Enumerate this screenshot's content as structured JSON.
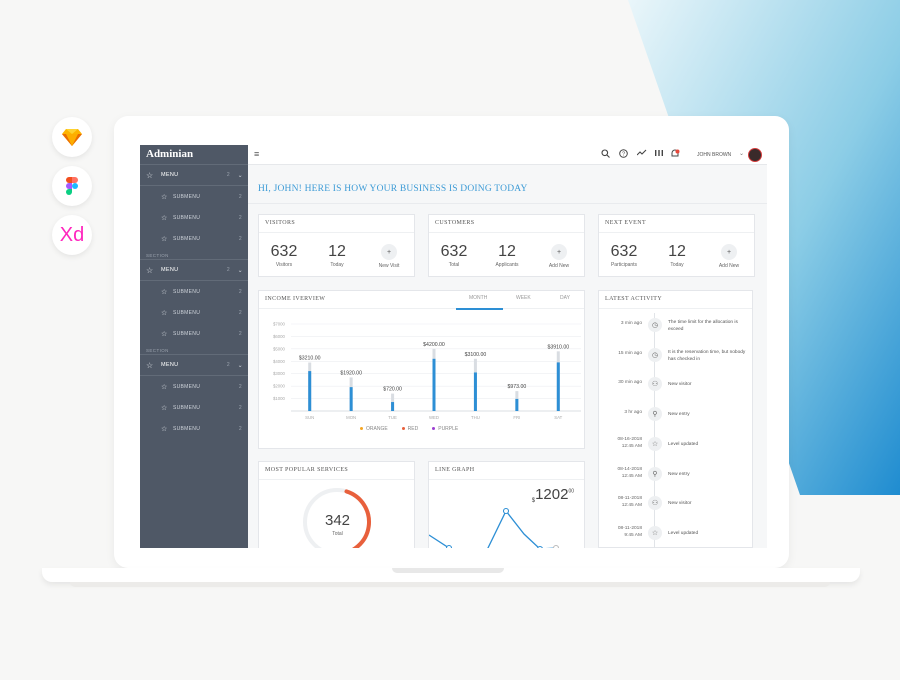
{
  "tools": [
    {
      "name": "sketch",
      "icon": "sketch-icon",
      "color": "#f7b500"
    },
    {
      "name": "figma",
      "icon": "figma-icon"
    },
    {
      "name": "xd",
      "label": "Xd",
      "color": "#ff26be"
    }
  ],
  "app": {
    "brand": "Adminian",
    "user": "JOHN BROWN",
    "greeting": "HI, JOHN! HERE IS HOW YOUR BUSINESS IS DOING TODAY"
  },
  "sidebar": {
    "groups": [
      {
        "section": "",
        "menu": "MENU",
        "count": "2",
        "subs": [
          {
            "label": "SUBMENU",
            "count": "2"
          },
          {
            "label": "SUBMENU",
            "count": "2"
          },
          {
            "label": "SUBMENU",
            "count": "2"
          }
        ]
      },
      {
        "section": "SECTION",
        "menu": "MENU",
        "count": "2",
        "subs": [
          {
            "label": "SUBMENU",
            "count": "2"
          },
          {
            "label": "SUBMENU",
            "count": "2"
          },
          {
            "label": "SUBMENU",
            "count": "2"
          }
        ]
      },
      {
        "section": "SECTION",
        "menu": "MENU",
        "count": "2",
        "subs": [
          {
            "label": "SUBMENU",
            "count": "2"
          },
          {
            "label": "SUBMENU",
            "count": "2"
          },
          {
            "label": "SUBMENU",
            "count": "2"
          }
        ]
      }
    ]
  },
  "stats": [
    {
      "title": "VISITORS",
      "a_num": "632",
      "a_lbl": "Visitors",
      "b_num": "12",
      "b_lbl": "Today",
      "action": "New Visit"
    },
    {
      "title": "CUSTOMERS",
      "a_num": "632",
      "a_lbl": "Total",
      "b_num": "12",
      "b_lbl": "Applicants",
      "action": "Add New"
    },
    {
      "title": "NEXT EVENT",
      "a_num": "632",
      "a_lbl": "Participants",
      "b_num": "12",
      "b_lbl": "Today",
      "action": "Add New"
    }
  ],
  "income": {
    "title": "INCOME IVERVIEW",
    "tabs": [
      "MONTH",
      "WEEK",
      "DAY"
    ],
    "active_tab": "MONTH"
  },
  "chart_data": {
    "type": "bar",
    "title": "INCOME IVERVIEW",
    "categories": [
      "SUN",
      "MON",
      "TUE",
      "WED",
      "THU",
      "FRI",
      "SAT"
    ],
    "yticks": [
      "$1000",
      "$2000",
      "$3000",
      "$4000",
      "$5000",
      "$6000",
      "$7000"
    ],
    "ylim": [
      0,
      7000
    ],
    "series": [
      {
        "name": "ORANGE",
        "color": "#f5a623",
        "values": [
          3210,
          1920,
          720,
          4200,
          3100,
          973,
          3910
        ],
        "labels": [
          "$3210.00",
          "$1920.00",
          "$720.00",
          "$4200.00",
          "$3100.00",
          "$973.00",
          "$3910.00"
        ]
      },
      {
        "name": "RED",
        "color": "#e8603c",
        "values": [
          0,
          0,
          0,
          0,
          0,
          0,
          0
        ]
      },
      {
        "name": "PURPLE",
        "color": "#9b3fd1",
        "values": [
          0,
          0,
          0,
          0,
          0,
          0,
          0
        ]
      }
    ],
    "bar_color": "#2d8fd5",
    "bg_values": [
      3900,
      2700,
      1400,
      5000,
      4200,
      1600,
      4800
    ]
  },
  "activity": {
    "title": "LATEST ACTIVITY",
    "items": [
      {
        "time": "3 min ago",
        "icon": "clock-icon",
        "text": "The time limit for the allocation is exceed"
      },
      {
        "time": "15 min ago",
        "icon": "clock-icon",
        "text": "It is the reservation time, but nobody has checked in"
      },
      {
        "time": "30 min ago",
        "icon": "user-group-icon",
        "text": "New visitor"
      },
      {
        "time": "3 hr ago",
        "icon": "user-icon",
        "text": "New entry"
      },
      {
        "time": "08-16-2018 12:45 AM",
        "icon": "star-icon",
        "text": "Level updated"
      },
      {
        "time": "08-14-2018 12:45 AM",
        "icon": "user-icon",
        "text": "New entry"
      },
      {
        "time": "08-11-2018 12:45 AM",
        "icon": "user-group-icon",
        "text": "New visitor"
      },
      {
        "time": "08-11-2018 9:45 AM",
        "icon": "star-icon",
        "text": "Level updated"
      }
    ]
  },
  "services": {
    "title": "MOST POPULAR SERVICES",
    "value": "342",
    "label": "Total",
    "fraction": 0.6
  },
  "line": {
    "title": "LINE GRAPH",
    "currency": "$",
    "value": "1202",
    "cents": "00"
  }
}
